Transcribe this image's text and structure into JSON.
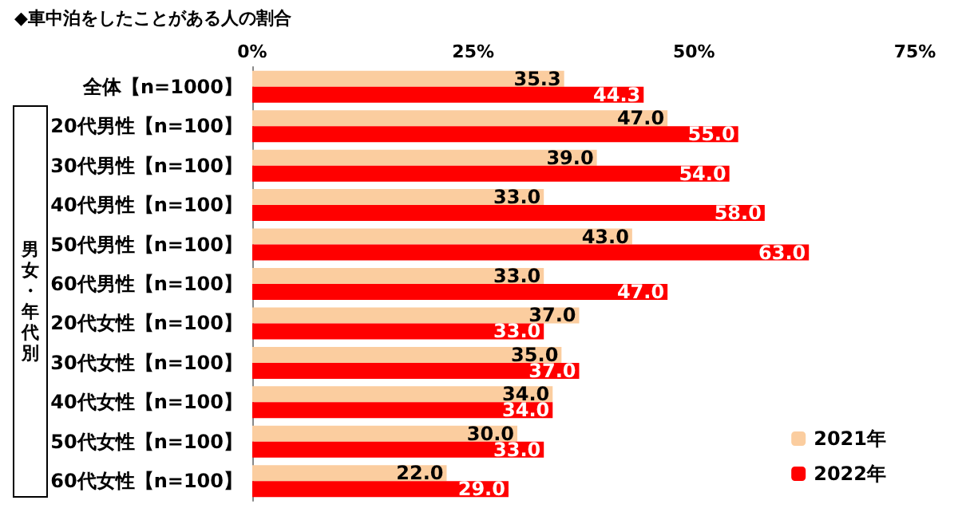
{
  "chart_data": {
    "type": "bar",
    "orientation": "horizontal",
    "title": "◆車中泊をしたことがある人の割合",
    "categories": [
      "全体【n=1000】",
      "20代男性【n=100】",
      "30代男性【n=100】",
      "40代男性【n=100】",
      "50代男性【n=100】",
      "60代男性【n=100】",
      "20代女性【n=100】",
      "30代女性【n=100】",
      "40代女性【n=100】",
      "50代女性【n=100】",
      "60代女性【n=100】"
    ],
    "series": [
      {
        "name": "2021年",
        "color": "#fbcd9f",
        "values": [
          35.3,
          47,
          39,
          33,
          43,
          33,
          37,
          35,
          34,
          30,
          22
        ],
        "value_labels": [
          "35.3",
          "47.0",
          "39.0",
          "33.0",
          "43.0",
          "33.0",
          "37.0",
          "35.0",
          "34.0",
          "30.0",
          "22.0"
        ]
      },
      {
        "name": "2022年",
        "color": "#ff0000",
        "values": [
          44.3,
          55,
          54,
          58,
          63,
          47,
          33,
          37,
          34,
          33,
          29
        ],
        "value_labels": [
          "44.3",
          "55.0",
          "54.0",
          "58.0",
          "63.0",
          "47.0",
          "33.0",
          "37.0",
          "34.0",
          "33.0",
          "29.0"
        ]
      }
    ],
    "xlim": [
      0,
      75
    ],
    "xticks": [
      {
        "value": 0,
        "label": "0%"
      },
      {
        "value": 25,
        "label": "25%"
      },
      {
        "value": 50,
        "label": "50%"
      },
      {
        "value": 75,
        "label": "75%"
      }
    ],
    "annotations": [
      "男女・年代別"
    ],
    "legend": "bottom right",
    "grid": false
  }
}
